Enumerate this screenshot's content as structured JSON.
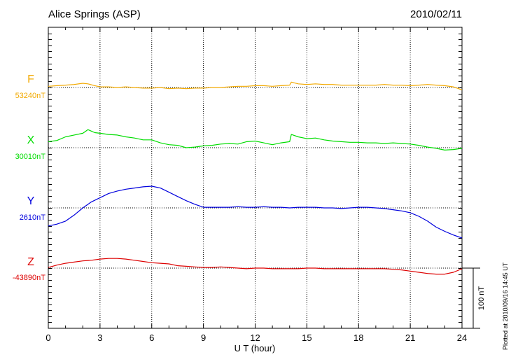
{
  "chart_data": {
    "type": "line",
    "title": "Alice Springs (ASP)",
    "date": "2010/02/11",
    "xlabel": "U T (hour)",
    "xlim": [
      0,
      24
    ],
    "xticks": [
      "0",
      "3",
      "6",
      "9",
      "12",
      "15",
      "18",
      "21",
      "24"
    ],
    "grid": true,
    "scale_bar_label": "100 nT",
    "scale_bar_nT": 100,
    "plotted_note": "Plotted at 2010/09/16 14:45 UT",
    "series": [
      {
        "name": "F",
        "baseline_label": "53240nT",
        "color": "#f2a900",
        "x": [
          0,
          0.5,
          1,
          1.5,
          2,
          2.3,
          2.7,
          3,
          3.5,
          4,
          4.5,
          5,
          5.5,
          6,
          6.5,
          7,
          7.5,
          8,
          8.5,
          9,
          9.5,
          10,
          10.5,
          11,
          11.5,
          12,
          12.5,
          13,
          13.5,
          14,
          14.1,
          14.5,
          15,
          15.5,
          16,
          16.5,
          17,
          17.5,
          18,
          18.5,
          19,
          19.5,
          20,
          20.5,
          21,
          21.5,
          22,
          22.5,
          23,
          23.5,
          24
        ],
        "values": [
          2,
          3,
          4,
          5,
          7,
          6,
          3,
          1,
          1,
          0,
          1,
          0,
          -1,
          -1,
          0,
          -2,
          -1,
          -2,
          -1,
          -1,
          0,
          0,
          1,
          2,
          2,
          3,
          3,
          2,
          3,
          4,
          9,
          6,
          5,
          6,
          5,
          5,
          4,
          4,
          4,
          4,
          4,
          5,
          4,
          4,
          3,
          4,
          5,
          4,
          3,
          1,
          -4
        ]
      },
      {
        "name": "X",
        "baseline_label": "30010nT",
        "color": "#00dd00",
        "x": [
          0,
          0.5,
          1,
          1.5,
          2,
          2.3,
          2.7,
          3,
          3.5,
          4,
          4.5,
          5,
          5.5,
          6,
          6.5,
          7,
          7.5,
          8,
          8.5,
          9,
          9.5,
          10,
          10.5,
          11,
          11.5,
          12,
          12.5,
          13,
          13.5,
          14,
          14.1,
          14.5,
          15,
          15.5,
          16,
          16.5,
          17,
          17.5,
          18,
          18.5,
          19,
          19.5,
          20,
          20.5,
          21,
          21.5,
          22,
          22.5,
          23,
          23.5,
          24
        ],
        "values": [
          10,
          12,
          18,
          21,
          24,
          30,
          25,
          24,
          22,
          21,
          18,
          16,
          13,
          13,
          8,
          5,
          4,
          0,
          1,
          3,
          4,
          6,
          7,
          6,
          10,
          11,
          8,
          5,
          8,
          10,
          22,
          18,
          15,
          16,
          13,
          11,
          10,
          9,
          9,
          8,
          8,
          7,
          8,
          7,
          6,
          4,
          1,
          -1,
          -4,
          -3,
          -1
        ]
      },
      {
        "name": "Y",
        "baseline_label": "2610nT",
        "color": "#0000dd",
        "x": [
          0,
          0.5,
          1,
          1.5,
          2,
          2.5,
          3,
          3.5,
          4,
          4.5,
          5,
          5.5,
          6,
          6.5,
          7,
          7.5,
          8,
          8.5,
          9,
          9.5,
          10,
          10.5,
          11,
          11.5,
          12,
          12.5,
          13,
          13.5,
          14,
          14.5,
          15,
          15.5,
          16,
          16.5,
          17,
          17.5,
          18,
          18.5,
          19,
          19.5,
          20,
          20.5,
          21,
          21.5,
          22,
          22.5,
          23,
          23.5,
          24
        ],
        "values": [
          -30,
          -27,
          -22,
          -12,
          0,
          10,
          17,
          24,
          28,
          31,
          33,
          35,
          36,
          33,
          26,
          19,
          12,
          6,
          1,
          1,
          1,
          1,
          2,
          1,
          1,
          2,
          1,
          1,
          0,
          1,
          1,
          1,
          0,
          0,
          -1,
          0,
          1,
          1,
          0,
          -1,
          -3,
          -5,
          -8,
          -14,
          -22,
          -32,
          -39,
          -45,
          -50
        ]
      },
      {
        "name": "Z",
        "baseline_label": "-43890nT",
        "color": "#dd0000",
        "x": [
          0,
          0.5,
          1,
          1.5,
          2,
          2.5,
          3,
          3.5,
          4,
          4.5,
          5,
          5.5,
          6,
          6.5,
          7,
          7.5,
          8,
          8.5,
          9,
          9.5,
          10,
          10.5,
          11,
          11.5,
          12,
          12.5,
          13,
          13.5,
          14,
          14.5,
          15,
          15.5,
          16,
          16.5,
          17,
          17.5,
          18,
          18.5,
          19,
          19.5,
          20,
          20.5,
          21,
          21.5,
          22,
          22.5,
          23,
          23.5,
          24
        ],
        "values": [
          1,
          5,
          8,
          10,
          12,
          13,
          15,
          16,
          16,
          15,
          13,
          11,
          9,
          8,
          7,
          4,
          3,
          2,
          1,
          1,
          2,
          1,
          0,
          -1,
          0,
          0,
          -1,
          -1,
          -1,
          -1,
          0,
          0,
          -1,
          -1,
          -1,
          -1,
          -1,
          -1,
          -1,
          -1,
          -2,
          -3,
          -5,
          -7,
          -9,
          -10,
          -10,
          -7,
          -1
        ]
      }
    ]
  }
}
